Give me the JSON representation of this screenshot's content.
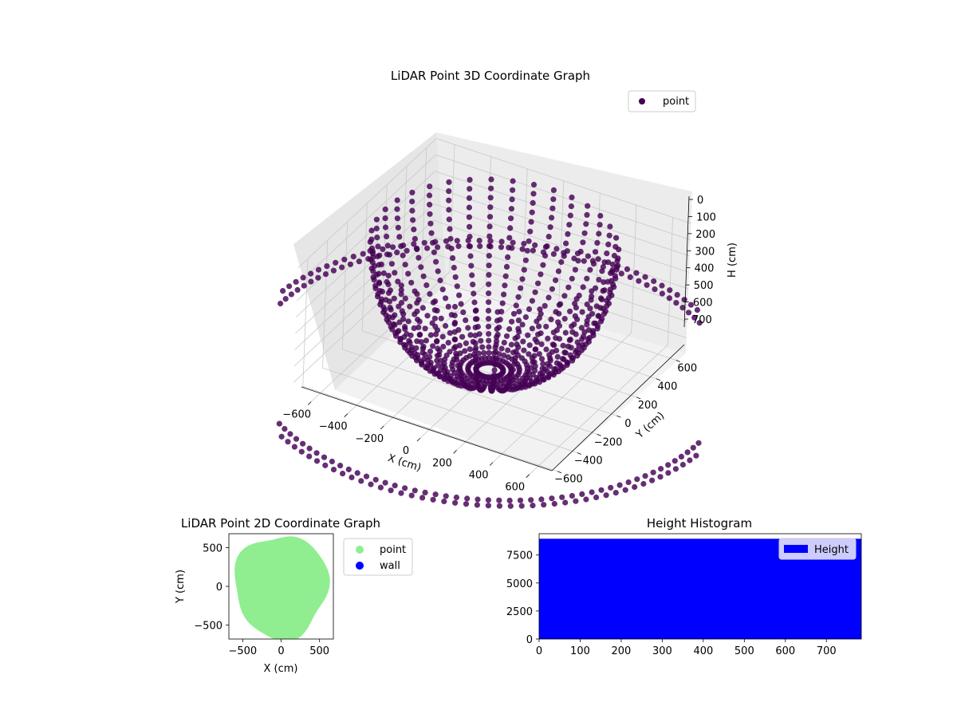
{
  "colors": {
    "point3d": "#440154",
    "point2d": "#90ee90",
    "wall": "#0000ff",
    "hist": "#0000ff",
    "pane_left": "#e6e6e6",
    "pane_right": "#ececec",
    "pane_floor": "#f2f2f2",
    "grid": "#c8c8c8"
  },
  "chart_data": [
    {
      "type": "scatter3d",
      "title": "LiDAR Point 3D Coordinate Graph",
      "xlabel": "X (cm)",
      "ylabel": "Y (cm)",
      "zlabel": "H (cm)",
      "xlim": [
        -700,
        700
      ],
      "ylim": [
        -700,
        700
      ],
      "zlim": [
        0,
        780
      ],
      "z_inverted": true,
      "x_ticks": [
        "−600",
        "−400",
        "−200",
        "0",
        "200",
        "400",
        "600"
      ],
      "y_ticks": [
        "−600",
        "−400",
        "−200",
        "0",
        "200",
        "400",
        "600"
      ],
      "z_ticks": [
        "0",
        "100",
        "200",
        "300",
        "400",
        "500",
        "600",
        "700"
      ],
      "legend": {
        "placement": "upper-right",
        "entries": [
          "point"
        ]
      },
      "series": [
        {
          "name": "point",
          "shape": "bowl",
          "rim_radius": 600,
          "rim_height": 0,
          "bottom_height": 760,
          "scan_lines": 36,
          "points_per_line": 22,
          "outer_ring_radii": [
            1150,
            1200
          ],
          "outer_ring_height": 780
        }
      ]
    },
    {
      "type": "scatter",
      "title": "LiDAR Point 2D Coordinate Graph",
      "xlabel": "X (cm)",
      "ylabel": "Y (cm)",
      "xlim": [
        -680,
        680
      ],
      "ylim": [
        -680,
        680
      ],
      "x_ticks": [
        -500,
        0,
        500
      ],
      "y_ticks": [
        -500,
        0,
        500
      ],
      "legend": {
        "placement": "outside-right",
        "entries": [
          "point",
          "wall"
        ]
      },
      "series": [
        {
          "name": "point",
          "region": "disc",
          "center": [
            0,
            0
          ],
          "radius": 620
        },
        {
          "name": "wall",
          "values": []
        }
      ]
    },
    {
      "type": "bar",
      "title": "Height Histogram",
      "xlabel": "",
      "ylabel": "",
      "xlim": [
        0,
        785
      ],
      "ylim": [
        0,
        9400
      ],
      "x_ticks": [
        0,
        100,
        200,
        300,
        400,
        500,
        600,
        700
      ],
      "y_ticks": [
        0,
        2500,
        5000,
        7500
      ],
      "legend": {
        "placement": "upper-right",
        "entries": [
          "Height"
        ]
      },
      "series": [
        {
          "name": "Height",
          "bin_range": [
            0,
            785
          ],
          "value": 8950
        }
      ]
    }
  ]
}
